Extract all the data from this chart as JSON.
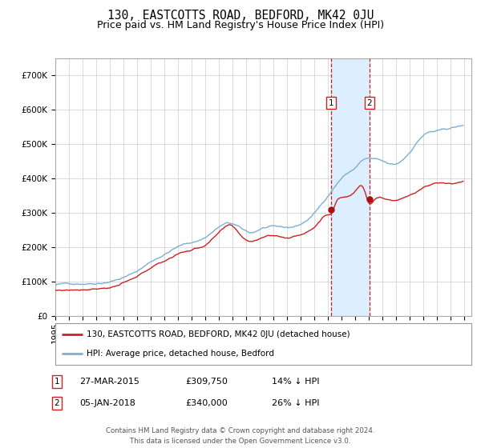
{
  "title": "130, EASTCOTTS ROAD, BEDFORD, MK42 0JU",
  "subtitle": "Price paid vs. HM Land Registry's House Price Index (HPI)",
  "footer": "Contains HM Land Registry data © Crown copyright and database right 2024.\nThis data is licensed under the Open Government Licence v3.0.",
  "legend_line1": "130, EASTCOTTS ROAD, BEDFORD, MK42 0JU (detached house)",
  "legend_line2": "HPI: Average price, detached house, Bedford",
  "transaction1": {
    "label": "1",
    "date": "27-MAR-2015",
    "price": 309750,
    "hpi_pct": "14% ↓ HPI"
  },
  "transaction2": {
    "label": "2",
    "date": "05-JAN-2018",
    "price": 340000,
    "hpi_pct": "26% ↓ HPI"
  },
  "transaction1_year": 2015.23,
  "transaction2_year": 2018.02,
  "transaction1_price": 309750,
  "transaction2_price": 340000,
  "ylim": [
    0,
    750000
  ],
  "yticks": [
    0,
    100000,
    200000,
    300000,
    400000,
    500000,
    600000,
    700000
  ],
  "ytick_labels": [
    "£0",
    "£100K",
    "£200K",
    "£300K",
    "£400K",
    "£500K",
    "£600K",
    "£700K"
  ],
  "hpi_color": "#7bafd4",
  "price_color": "#cc2222",
  "marker_color": "#aa1111",
  "vline_color": "#cc2222",
  "highlight_color": "#ddeeff",
  "background_color": "#ffffff",
  "grid_color": "#cccccc",
  "title_fontsize": 10.5,
  "subtitle_fontsize": 9,
  "axis_fontsize": 7.5,
  "label_box_color": "#ffffff",
  "label_box_edge": "#cc2222",
  "xlim_left": 1995.0,
  "xlim_right": 2025.5
}
